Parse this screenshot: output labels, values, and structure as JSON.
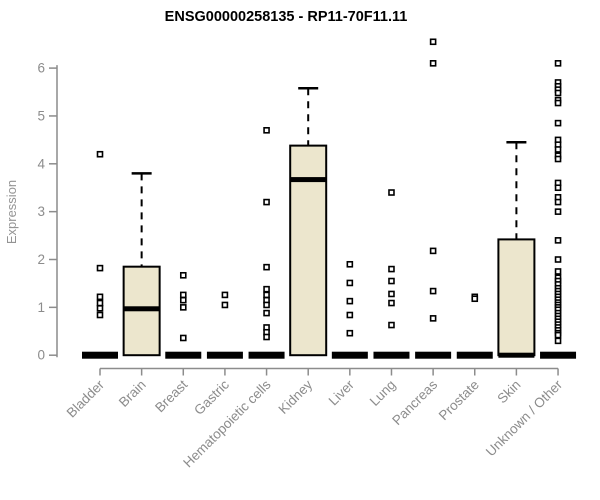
{
  "chart_data": {
    "type": "boxplot",
    "title": "ENSG00000258135 - RP11-70F11.11",
    "ylabel": "Expression",
    "xlabel": "",
    "ylim": [
      0,
      6
    ],
    "yticks": [
      0,
      1,
      2,
      3,
      4,
      5,
      6
    ],
    "grid": false,
    "legend": false,
    "categories": [
      "Bladder",
      "Brain",
      "Breast",
      "Gastric",
      "Hematopoietic cells",
      "Kidney",
      "Liver",
      "Lung",
      "Pancreas",
      "Prostate",
      "Skin",
      "Unknown / Other"
    ],
    "series": [
      {
        "name": "Bladder",
        "q1": 0,
        "median": 0,
        "q3": 0,
        "whisker_low": 0,
        "whisker_high": 0,
        "outliers": [
          4.2,
          1.82,
          1.22,
          1.09,
          0.98,
          0.84
        ]
      },
      {
        "name": "Brain",
        "q1": 0,
        "median": 0.97,
        "q3": 1.85,
        "whisker_low": 0,
        "whisker_high": 3.8,
        "outliers": []
      },
      {
        "name": "Breast",
        "q1": 0,
        "median": 0,
        "q3": 0,
        "whisker_low": 0,
        "whisker_high": 0,
        "outliers": [
          1.67,
          1.26,
          1.15,
          1.0,
          0.36
        ]
      },
      {
        "name": "Gastric",
        "q1": 0,
        "median": 0,
        "q3": 0,
        "whisker_low": 0,
        "whisker_high": 0,
        "outliers": [
          1.26,
          1.05
        ]
      },
      {
        "name": "Hematopoietic cells",
        "q1": 0,
        "median": 0,
        "q3": 0,
        "whisker_low": 0,
        "whisker_high": 0,
        "outliers": [
          4.7,
          3.2,
          1.84,
          1.38,
          1.26,
          1.15,
          1.05,
          0.88,
          0.58,
          0.48,
          0.38
        ]
      },
      {
        "name": "Kidney",
        "q1": 0,
        "median": 3.67,
        "q3": 4.38,
        "whisker_low": 0,
        "whisker_high": 5.58,
        "outliers": []
      },
      {
        "name": "Liver",
        "q1": 0,
        "median": 0,
        "q3": 0,
        "whisker_low": 0,
        "whisker_high": 0,
        "outliers": [
          1.9,
          1.51,
          1.13,
          0.84,
          0.46
        ]
      },
      {
        "name": "Lung",
        "q1": 0,
        "median": 0,
        "q3": 0,
        "whisker_low": 0,
        "whisker_high": 0,
        "outliers": [
          3.4,
          1.8,
          1.55,
          1.28,
          1.09,
          0.63
        ]
      },
      {
        "name": "Pancreas",
        "q1": 0,
        "median": 0,
        "q3": 0,
        "whisker_low": 0,
        "whisker_high": 0,
        "outliers": [
          6.55,
          6.1,
          2.18,
          1.34,
          0.77
        ]
      },
      {
        "name": "Prostate",
        "q1": 0,
        "median": 0,
        "q3": 0,
        "whisker_low": 0,
        "whisker_high": 0,
        "outliers": [
          1.22,
          1.18
        ]
      },
      {
        "name": "Skin",
        "q1": 0,
        "median": 0,
        "q3": 2.42,
        "whisker_low": 0,
        "whisker_high": 4.45,
        "outliers": []
      },
      {
        "name": "Unknown / Other",
        "q1": 0,
        "median": 0,
        "q3": 0,
        "whisker_low": 0,
        "whisker_high": 0,
        "outliers": [
          6.1,
          5.7,
          5.62,
          5.55,
          5.48,
          5.33,
          5.27,
          4.85,
          4.5,
          4.4,
          4.3,
          4.17,
          4.1,
          3.6,
          3.5,
          3.3,
          3.2,
          3.0,
          2.4,
          2.0,
          1.75,
          1.62,
          1.55,
          1.48,
          1.4,
          1.34,
          1.28,
          1.22,
          1.16,
          1.1,
          1.05,
          1.0,
          0.95,
          0.88,
          0.82,
          0.76,
          0.7,
          0.64,
          0.58,
          0.52,
          0.46,
          0.42,
          0.3
        ]
      }
    ],
    "colors": {
      "box_fill": "#ECE6CD",
      "box_stroke": "#000000",
      "median": "#000000",
      "whisker": "#000000",
      "outlier_stroke": "#000000",
      "outlier_fill": "#FFFFFF",
      "axis": "#8c8c8c",
      "tick_label": "#8c8c8c",
      "title": "#000000"
    }
  }
}
